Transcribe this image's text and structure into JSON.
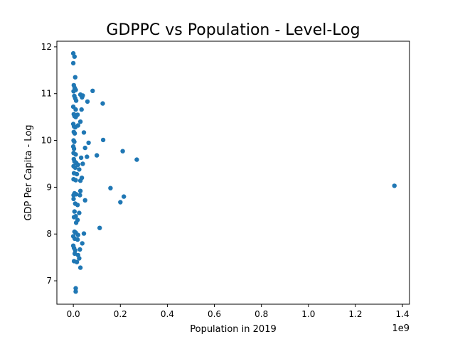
{
  "chart_data": {
    "type": "scatter",
    "title": "GDPPC vs Population - Level-Log",
    "xlabel": "Population in 2019",
    "ylabel": "GDP Per Capita - Log",
    "x_offset_text": "1e9",
    "xlim": [
      -0.07,
      1.43
    ],
    "ylim": [
      6.5,
      12.12
    ],
    "x_ticks": [
      0.0,
      0.2,
      0.4,
      0.6,
      0.8,
      1.0,
      1.2,
      1.4
    ],
    "x_tick_labels": [
      "0.0",
      "0.2",
      "0.4",
      "0.6",
      "0.8",
      "1.0",
      "1.2",
      "1.4"
    ],
    "y_ticks": [
      7,
      8,
      9,
      10,
      11,
      12
    ],
    "y_tick_labels": [
      "7",
      "8",
      "9",
      "10",
      "11",
      "12"
    ],
    "grid": false,
    "marker_color": "#1f77b4",
    "points": [
      [
        0.0,
        11.86
      ],
      [
        0.005,
        11.79
      ],
      [
        0.0,
        11.65
      ],
      [
        0.008,
        11.35
      ],
      [
        0.002,
        11.18
      ],
      [
        0.006,
        11.12
      ],
      [
        0.01,
        11.08
      ],
      [
        0.001,
        11.05
      ],
      [
        0.03,
        10.98
      ],
      [
        0.037,
        10.92
      ],
      [
        0.004,
        10.95
      ],
      [
        0.008,
        10.9
      ],
      [
        0.012,
        10.85
      ],
      [
        0.082,
        11.06
      ],
      [
        0.04,
        10.96
      ],
      [
        0.06,
        10.83
      ],
      [
        0.125,
        10.79
      ],
      [
        0.0,
        10.72
      ],
      [
        0.01,
        10.66
      ],
      [
        0.035,
        10.66
      ],
      [
        0.002,
        10.56
      ],
      [
        0.005,
        10.52
      ],
      [
        0.01,
        10.5
      ],
      [
        0.018,
        10.55
      ],
      [
        0.0,
        10.35
      ],
      [
        0.003,
        10.3
      ],
      [
        0.008,
        10.28
      ],
      [
        0.02,
        10.32
      ],
      [
        0.03,
        10.4
      ],
      [
        0.002,
        10.18
      ],
      [
        0.006,
        10.15
      ],
      [
        0.045,
        10.17
      ],
      [
        0.127,
        10.01
      ],
      [
        0.001,
        10.0
      ],
      [
        0.004,
        9.97
      ],
      [
        0.065,
        9.95
      ],
      [
        0.0,
        9.87
      ],
      [
        0.003,
        9.82
      ],
      [
        0.05,
        9.84
      ],
      [
        0.21,
        9.77
      ],
      [
        0.27,
        9.59
      ],
      [
        0.001,
        9.73
      ],
      [
        0.01,
        9.7
      ],
      [
        0.1,
        9.68
      ],
      [
        0.058,
        9.65
      ],
      [
        0.033,
        9.63
      ],
      [
        0.002,
        9.6
      ],
      [
        0.005,
        9.55
      ],
      [
        0.012,
        9.52
      ],
      [
        0.02,
        9.48
      ],
      [
        0.04,
        9.5
      ],
      [
        0.001,
        9.45
      ],
      [
        0.008,
        9.42
      ],
      [
        0.025,
        9.38
      ],
      [
        0.003,
        9.3
      ],
      [
        0.015,
        9.28
      ],
      [
        0.036,
        9.2
      ],
      [
        0.001,
        9.17
      ],
      [
        0.01,
        9.15
      ],
      [
        0.03,
        9.14
      ],
      [
        0.158,
        8.98
      ],
      [
        0.03,
        8.92
      ],
      [
        0.001,
        8.83
      ],
      [
        0.005,
        8.87
      ],
      [
        0.012,
        8.85
      ],
      [
        0.028,
        8.83
      ],
      [
        0.215,
        8.8
      ],
      [
        0.05,
        8.72
      ],
      [
        0.2,
        8.68
      ],
      [
        0.001,
        8.75
      ],
      [
        0.008,
        8.65
      ],
      [
        0.018,
        8.62
      ],
      [
        1.366,
        9.03
      ],
      [
        0.005,
        8.48
      ],
      [
        0.025,
        8.45
      ],
      [
        0.01,
        8.38
      ],
      [
        0.003,
        8.36
      ],
      [
        0.018,
        8.3
      ],
      [
        0.012,
        8.24
      ],
      [
        0.112,
        8.13
      ],
      [
        0.045,
        8.01
      ],
      [
        0.005,
        8.05
      ],
      [
        0.01,
        8.03
      ],
      [
        0.02,
        7.98
      ],
      [
        0.0,
        7.95
      ],
      [
        0.006,
        7.9
      ],
      [
        0.018,
        7.88
      ],
      [
        0.038,
        7.8
      ],
      [
        0.0,
        7.75
      ],
      [
        0.003,
        7.7
      ],
      [
        0.008,
        7.65
      ],
      [
        0.028,
        7.67
      ],
      [
        0.006,
        7.58
      ],
      [
        0.02,
        7.55
      ],
      [
        0.025,
        7.48
      ],
      [
        0.003,
        7.42
      ],
      [
        0.015,
        7.4
      ],
      [
        0.03,
        7.28
      ],
      [
        0.01,
        6.84
      ],
      [
        0.01,
        6.77
      ]
    ]
  }
}
